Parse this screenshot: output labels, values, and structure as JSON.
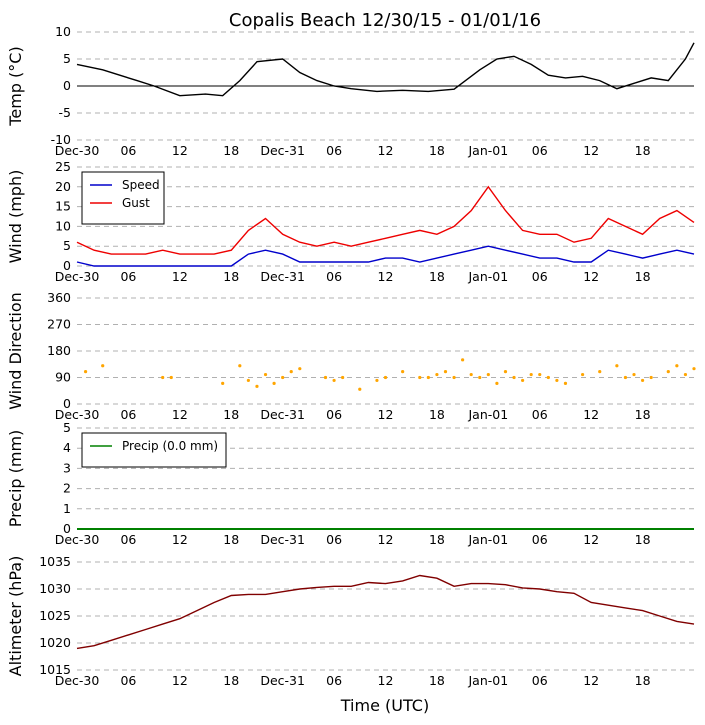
{
  "figure": {
    "title": "Copalis Beach 12/30/15 - 01/01/16",
    "xlabel": "Time (UTC)"
  },
  "colors": {
    "temp": "#000000",
    "speed": "#0000cc",
    "gust": "#ee0000",
    "direction": "#ffa500",
    "precip": "#008000",
    "altimeter": "#800000",
    "grid": "#b0b0b0"
  },
  "time_ticks": [
    "Dec-30",
    "06",
    "12",
    "18",
    "Dec-31",
    "06",
    "12",
    "18",
    "Jan-01",
    "06",
    "12",
    "18"
  ],
  "chart_data": [
    {
      "id": "temp",
      "type": "line",
      "ylabel": "Temp (°C)",
      "ylim": [
        -10,
        10
      ],
      "yticks": [
        -10,
        -5,
        0,
        5,
        10
      ],
      "x_hours": [
        0,
        3,
        5,
        7,
        9,
        12,
        15,
        17,
        19,
        21,
        24,
        26,
        28,
        30,
        32,
        35,
        38,
        41,
        44,
        47,
        49,
        51,
        53,
        55,
        57,
        59,
        61,
        63,
        65,
        67,
        69,
        71,
        72
      ],
      "series": [
        {
          "name": "Temp",
          "values": [
            4,
            3,
            2,
            1,
            0,
            -1.8,
            -1.5,
            -1.8,
            1,
            4.5,
            5,
            2.5,
            1,
            0,
            -0.5,
            -1,
            -0.8,
            -1,
            -0.6,
            3,
            5,
            5.5,
            4,
            2,
            1.5,
            1.8,
            1,
            -0.5,
            0.5,
            1.5,
            1,
            5,
            8
          ]
        }
      ],
      "reference_line": 0
    },
    {
      "id": "wind",
      "type": "line",
      "ylabel": "Wind (mph)",
      "ylim": [
        0,
        25
      ],
      "yticks": [
        0,
        5,
        10,
        15,
        20,
        25
      ],
      "legend": "top-left",
      "x_hours": [
        0,
        2,
        4,
        6,
        8,
        10,
        12,
        14,
        16,
        18,
        20,
        22,
        24,
        26,
        28,
        30,
        32,
        34,
        36,
        38,
        40,
        42,
        44,
        46,
        48,
        50,
        52,
        54,
        56,
        58,
        60,
        62,
        64,
        66,
        68,
        70,
        72
      ],
      "series": [
        {
          "name": "Speed",
          "values": [
            1,
            0,
            0,
            0,
            0,
            0,
            0,
            0,
            0,
            0,
            3,
            4,
            3,
            1,
            1,
            1,
            1,
            1,
            2,
            2,
            1,
            2,
            3,
            4,
            5,
            4,
            3,
            2,
            2,
            1,
            1,
            4,
            3,
            2,
            3,
            4,
            3
          ]
        },
        {
          "name": "Gust",
          "values": [
            6,
            4,
            3,
            3,
            3,
            4,
            3,
            3,
            3,
            4,
            9,
            12,
            8,
            6,
            5,
            6,
            5,
            6,
            7,
            8,
            9,
            8,
            10,
            14,
            20,
            14,
            9,
            8,
            8,
            6,
            7,
            12,
            10,
            8,
            12,
            14,
            11
          ]
        }
      ]
    },
    {
      "id": "direction",
      "type": "scatter",
      "ylabel": "Wind Direction",
      "ylim": [
        0,
        360
      ],
      "yticks": [
        0,
        90,
        180,
        270,
        360
      ],
      "x_hours": [
        1,
        3,
        10,
        11,
        17,
        19,
        20,
        21,
        22,
        23,
        24,
        25,
        26,
        29,
        30,
        31,
        33,
        35,
        36,
        38,
        40,
        41,
        42,
        43,
        44,
        45,
        46,
        47,
        48,
        49,
        50,
        51,
        52,
        53,
        54,
        55,
        56,
        57,
        59,
        61,
        63,
        64,
        65,
        66,
        67,
        69,
        70,
        71,
        72
      ],
      "series": [
        {
          "name": "Direction",
          "values": [
            110,
            130,
            90,
            90,
            70,
            130,
            80,
            60,
            100,
            70,
            90,
            110,
            120,
            90,
            80,
            90,
            50,
            80,
            90,
            110,
            90,
            90,
            100,
            110,
            90,
            150,
            100,
            90,
            100,
            70,
            110,
            90,
            80,
            100,
            100,
            90,
            80,
            70,
            100,
            110,
            130,
            90,
            100,
            80,
            90,
            110,
            130,
            100,
            120
          ]
        }
      ]
    },
    {
      "id": "precip",
      "type": "line",
      "ylabel": "Precip (mm)",
      "ylim": [
        0,
        5
      ],
      "yticks": [
        0,
        1,
        2,
        3,
        4,
        5
      ],
      "legend": "top-left",
      "x_hours": [
        0,
        72
      ],
      "series": [
        {
          "name": "Precip (0.0 mm)",
          "values": [
            0,
            0
          ]
        }
      ]
    },
    {
      "id": "altimeter",
      "type": "line",
      "ylabel": "Altimeter (hPa)",
      "ylim": [
        1015,
        1035
      ],
      "yticks": [
        1015,
        1020,
        1025,
        1030,
        1035
      ],
      "x_hours": [
        0,
        2,
        4,
        6,
        8,
        10,
        12,
        14,
        16,
        18,
        20,
        22,
        24,
        26,
        28,
        30,
        32,
        34,
        36,
        38,
        40,
        42,
        44,
        46,
        48,
        50,
        52,
        54,
        56,
        58,
        60,
        62,
        64,
        66,
        68,
        70,
        72
      ],
      "series": [
        {
          "name": "Altimeter",
          "values": [
            1019,
            1019.5,
            1020.5,
            1021.5,
            1022.5,
            1023.5,
            1024.5,
            1026,
            1027.5,
            1028.8,
            1029,
            1029,
            1029.5,
            1030,
            1030.3,
            1030.5,
            1030.5,
            1031.2,
            1031,
            1031.5,
            1032.5,
            1032,
            1030.5,
            1031,
            1031,
            1030.8,
            1030.2,
            1030,
            1029.5,
            1029.2,
            1027.5,
            1027,
            1026.5,
            1026,
            1025,
            1024,
            1023.5
          ]
        }
      ]
    }
  ]
}
